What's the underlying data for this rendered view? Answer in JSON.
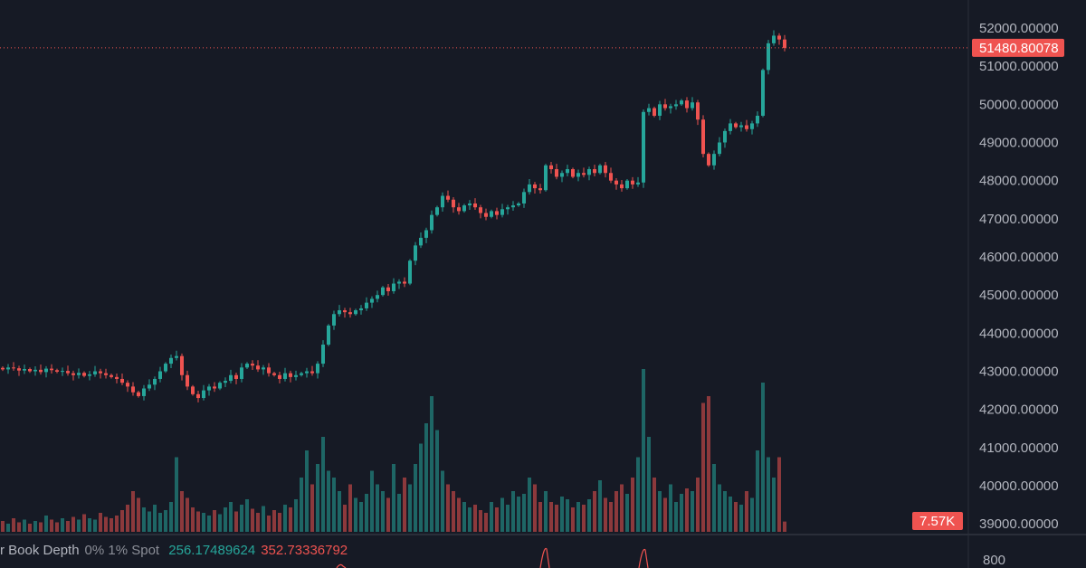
{
  "chart_data": {
    "type": "candlestick",
    "yaxis_ticks": [
      "52000.00000",
      "51000.00000",
      "50000.00000",
      "49000.00000",
      "48000.00000",
      "47000.00000",
      "46000.00000",
      "45000.00000",
      "44000.00000",
      "43000.00000",
      "42000.00000",
      "41000.00000",
      "40000.00000",
      "39000.00000"
    ],
    "ylim": [
      38900,
      52300
    ],
    "closes": [
      43050,
      43100,
      43080,
      43020,
      43060,
      43000,
      43040,
      42980,
      43070,
      43030,
      42990,
      43010,
      42950,
      42900,
      42960,
      42880,
      42920,
      43000,
      42950,
      42900,
      42850,
      42800,
      42700,
      42600,
      42450,
      42350,
      42550,
      42650,
      42800,
      43000,
      43200,
      43350,
      43400,
      42900,
      42600,
      42400,
      42300,
      42500,
      42600,
      42550,
      42700,
      42750,
      42900,
      42800,
      43100,
      43200,
      43150,
      43050,
      43100,
      42950,
      42900,
      42800,
      42950,
      42850,
      42900,
      42950,
      43000,
      42950,
      43200,
      43700,
      44200,
      44500,
      44600,
      44550,
      44500,
      44600,
      44650,
      44800,
      44900,
      45000,
      45200,
      45100,
      45300,
      45350,
      45300,
      45900,
      46300,
      46500,
      46700,
      47100,
      47300,
      47600,
      47500,
      47300,
      47200,
      47350,
      47400,
      47300,
      47150,
      47050,
      47200,
      47100,
      47250,
      47300,
      47350,
      47400,
      47700,
      47900,
      47800,
      47750,
      48400,
      48300,
      48100,
      48200,
      48300,
      48100,
      48200,
      48150,
      48300,
      48200,
      48400,
      48200,
      48000,
      47900,
      47800,
      48000,
      47900,
      47950,
      49800,
      49900,
      49700,
      50000,
      49900,
      49950,
      50000,
      50100,
      49900,
      50050,
      49600,
      48700,
      48400,
      48700,
      49000,
      49300,
      49500,
      49400,
      49450,
      49350,
      49500,
      49700,
      50900,
      51600,
      51800,
      51700,
      51480
    ],
    "volumes_k": [
      8,
      6,
      10,
      7,
      9,
      6,
      8,
      7,
      12,
      9,
      7,
      10,
      8,
      11,
      9,
      13,
      10,
      9,
      14,
      11,
      10,
      12,
      16,
      20,
      30,
      25,
      18,
      15,
      20,
      14,
      16,
      22,
      55,
      30,
      25,
      18,
      15,
      14,
      12,
      16,
      13,
      18,
      22,
      15,
      20,
      24,
      17,
      14,
      19,
      12,
      16,
      14,
      20,
      18,
      24,
      40,
      60,
      35,
      50,
      70,
      45,
      40,
      30,
      20,
      35,
      25,
      22,
      28,
      45,
      35,
      30,
      25,
      50,
      28,
      40,
      35,
      50,
      65,
      80,
      100,
      75,
      45,
      35,
      30,
      25,
      22,
      18,
      20,
      16,
      14,
      22,
      18,
      25,
      20,
      30,
      26,
      28,
      40,
      35,
      22,
      30,
      22,
      20,
      26,
      24,
      18,
      22,
      20,
      24,
      30,
      38,
      25,
      22,
      30,
      35,
      28,
      40,
      55,
      120,
      70,
      40,
      30,
      25,
      35,
      22,
      28,
      32,
      30,
      40,
      95,
      100,
      50,
      35,
      30,
      26,
      22,
      20,
      30,
      25,
      60,
      110,
      55,
      40,
      55,
      7.57
    ],
    "last_price": "51480.80078",
    "last_volume": "7.57K",
    "colors": {
      "up": "#26a69a",
      "down": "#ef5350",
      "background": "#161a25"
    }
  },
  "indicator": {
    "name": "r Book Depth",
    "params": "0% 1% Spot",
    "value_bid": "256.17489624",
    "value_ask": "352.73336792",
    "axis_tick": "800"
  }
}
